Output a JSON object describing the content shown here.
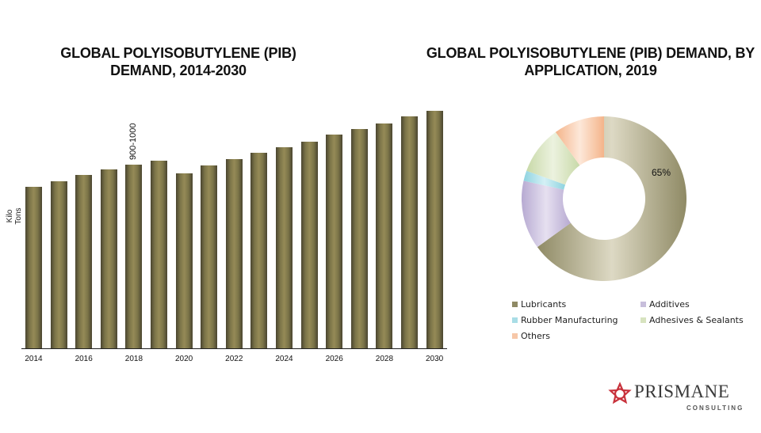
{
  "titles": {
    "left": "GLOBAL POLYISOBUTYLENE (PIB) DEMAND, 2014-2030",
    "right": "GLOBAL POLYISOBUTYLENE (PIB) DEMAND, BY APPLICATION, 2019"
  },
  "bar_chart": {
    "ylabel": "Kilo Tons",
    "annotation": "900-1000",
    "annotation_year": "2018",
    "x_ticks": [
      "2014",
      "2016",
      "2018",
      "2020",
      "2022",
      "2024",
      "2026",
      "2028",
      "2030"
    ]
  },
  "donut": {
    "label": "65%"
  },
  "legend": [
    {
      "label": "Lubricants",
      "color": "#8f8a65"
    },
    {
      "label": "Additives",
      "color": "#c7bedb"
    },
    {
      "label": "Rubber Manufacturing",
      "color": "#a9dde6"
    },
    {
      "label": "Adhesives & Sealants",
      "color": "#d7e3bf"
    },
    {
      "label": "Others",
      "color": "#f6c7a8"
    }
  ],
  "logo": {
    "name": "PRISMANE",
    "sub": "CONSULTING",
    "color": "#c8323c"
  },
  "chart_data": [
    {
      "type": "bar",
      "title": "GLOBAL POLYISOBUTYLENE (PIB) DEMAND, 2014-2030",
      "xlabel": "",
      "ylabel": "Kilo Tons",
      "categories": [
        "2014",
        "2015",
        "2016",
        "2017",
        "2018",
        "2019",
        "2020",
        "2021",
        "2022",
        "2023",
        "2024",
        "2025",
        "2026",
        "2027",
        "2028",
        "2029",
        "2030"
      ],
      "values": [
        835,
        865,
        895,
        925,
        950,
        970,
        905,
        945,
        980,
        1010,
        1040,
        1070,
        1105,
        1135,
        1165,
        1200,
        1230
      ],
      "annotations": [
        {
          "x": "2018",
          "text": "900-1000"
        }
      ],
      "grid": false,
      "legend": "none",
      "color": "#8a8155"
    },
    {
      "type": "pie",
      "subtype": "donut",
      "title": "GLOBAL POLYISOBUTYLENE (PIB) DEMAND, BY APPLICATION, 2019",
      "categories": [
        "Lubricants",
        "Additives",
        "Rubber Manufacturing",
        "Adhesives & Sealants",
        "Others"
      ],
      "values": [
        65,
        13.5,
        2,
        9.5,
        10
      ],
      "data_labels": {
        "Lubricants": "65%"
      },
      "colors": [
        "#8f8a65",
        "#c7bedb",
        "#a9dde6",
        "#d7e3bf",
        "#f6c7a8"
      ],
      "legend": "bottom"
    }
  ]
}
